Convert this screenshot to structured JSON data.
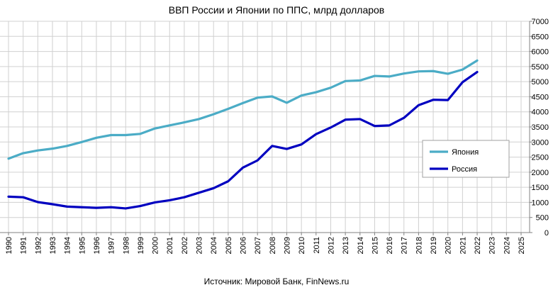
{
  "chart_data": {
    "type": "line",
    "title": "ВВП России и Японии по ППС, млрд долларов",
    "source": "Источник: Мировой Банк, FinNews.ru",
    "x": [
      1990,
      1991,
      1992,
      1993,
      1994,
      1995,
      1996,
      1997,
      1998,
      1999,
      2000,
      2001,
      2002,
      2003,
      2004,
      2005,
      2006,
      2007,
      2008,
      2009,
      2010,
      2011,
      2012,
      2013,
      2014,
      2015,
      2016,
      2017,
      2018,
      2019,
      2020,
      2021,
      2022
    ],
    "x_tick_labels": [
      "1990",
      "1991",
      "1992",
      "1993",
      "1994",
      "1995",
      "1996",
      "1997",
      "1998",
      "1999",
      "2000",
      "2001",
      "2002",
      "2003",
      "2004",
      "2005",
      "2006",
      "2007",
      "2008",
      "2009",
      "2010",
      "2011",
      "2012",
      "2013",
      "2014",
      "2015",
      "2016",
      "2017",
      "2018",
      "2019",
      "2020",
      "2021",
      "2022",
      "2023",
      "2024",
      "2025"
    ],
    "xlim": [
      1990,
      2025
    ],
    "ylim": [
      0,
      7000
    ],
    "y_ticks": [
      0,
      500,
      1000,
      1500,
      2000,
      2500,
      3000,
      3500,
      4000,
      4500,
      5000,
      5500,
      6000,
      6500,
      7000
    ],
    "y_axis_position": "right",
    "grid": true,
    "legend_position": "right",
    "series": [
      {
        "name": "Япония",
        "color": "#4bacc6",
        "values": [
          2450,
          2630,
          2720,
          2780,
          2870,
          3000,
          3140,
          3230,
          3230,
          3270,
          3450,
          3550,
          3650,
          3760,
          3920,
          4100,
          4290,
          4470,
          4510,
          4300,
          4540,
          4650,
          4800,
          5020,
          5040,
          5190,
          5170,
          5270,
          5340,
          5350,
          5260,
          5400,
          5700
        ]
      },
      {
        "name": "Россия",
        "color": "#0000c0",
        "values": [
          1190,
          1170,
          1010,
          940,
          860,
          840,
          820,
          840,
          800,
          880,
          1000,
          1070,
          1170,
          1320,
          1470,
          1700,
          2150,
          2390,
          2870,
          2770,
          2920,
          3260,
          3480,
          3740,
          3760,
          3530,
          3550,
          3800,
          4220,
          4400,
          4390,
          4980,
          5320
        ]
      }
    ]
  }
}
